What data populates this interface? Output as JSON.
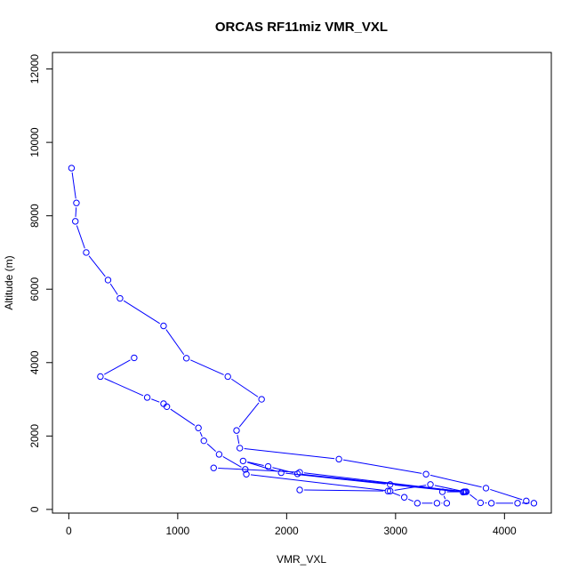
{
  "chart_data": {
    "type": "line",
    "title": "ORCAS RF11miz VMR_VXL",
    "xlabel": "VMR_VXL",
    "ylabel": "Altitude (m)",
    "xlim": [
      -150,
      4430
    ],
    "ylim": [
      -100,
      12450
    ],
    "x_ticks": [
      0,
      1000,
      2000,
      3000,
      4000
    ],
    "y_ticks": [
      0,
      2000,
      4000,
      6000,
      8000,
      10000,
      12000
    ],
    "grid": false,
    "color": "#0000ff",
    "series": [
      {
        "x": [
          25,
          70,
          60,
          160,
          360,
          470,
          870,
          1080,
          1460,
          1770,
          1540,
          1570,
          2480,
          3280,
          3830,
          4200,
          4270,
          4120,
          3880,
          3780,
          3650,
          3630,
          3620,
          2950,
          1950,
          1600,
          1830,
          2100,
          3640,
          3320,
          2950,
          1630,
          1620,
          1380,
          1240,
          1190,
          900,
          870,
          720,
          290,
          600
        ],
        "y": [
          9300,
          8350,
          7850,
          7000,
          6250,
          5750,
          5000,
          4120,
          3620,
          3000,
          2150,
          1670,
          1370,
          960,
          580,
          230,
          170,
          170,
          170,
          180,
          480,
          480,
          470,
          680,
          1000,
          1320,
          1170,
          970,
          480,
          680,
          500,
          960,
          1090,
          1500,
          1870,
          2220,
          2800,
          2880,
          3050,
          3620,
          4130
        ]
      },
      {
        "x": [
          1330,
          2120,
          3630,
          3430,
          3470,
          3380,
          3200,
          3080,
          2930,
          2120
        ],
        "y": [
          1130,
          1010,
          480,
          480,
          170,
          170,
          170,
          330,
          500,
          530
        ]
      }
    ]
  }
}
